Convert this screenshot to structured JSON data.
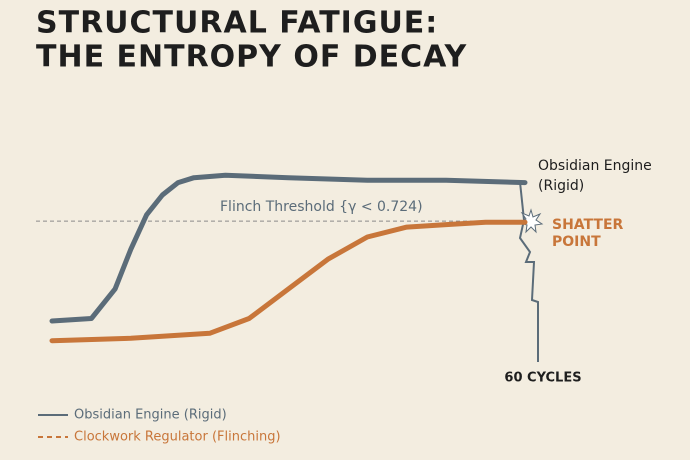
{
  "chart_data": {
    "type": "line",
    "title": [
      "STRUCTURAL FATIGUE:",
      "THE ENTROPY OF DECAY"
    ],
    "xlim": [
      0,
      60
    ],
    "ylim": [
      0,
      1
    ],
    "threshold": {
      "value": 0.724,
      "label": "Flinch Threshold {γ < 0.724)"
    },
    "end_label": [
      "Obsidian Engine",
      "(Rigid)"
    ],
    "shatter_label": [
      "SHATTER",
      "POINT"
    ],
    "cycles_label": "60 CYCLES",
    "series": [
      {
        "name": "Obsidian Engine (Rigid)",
        "color": "#5b6c79",
        "legend_style": "solid",
        "x": [
          0,
          5,
          8,
          10,
          12,
          14,
          16,
          18,
          22,
          30,
          40,
          50,
          60
        ],
        "values": [
          0.32,
          0.33,
          0.45,
          0.61,
          0.75,
          0.83,
          0.88,
          0.9,
          0.91,
          0.9,
          0.89,
          0.89,
          0.88
        ]
      },
      {
        "name": "Clockwork Regulator (Flinching)",
        "color": "#c8763a",
        "legend_style": "dashed",
        "x": [
          0,
          10,
          20,
          25,
          30,
          35,
          40,
          45,
          50,
          55,
          60
        ],
        "values": [
          0.24,
          0.25,
          0.27,
          0.33,
          0.45,
          0.57,
          0.66,
          0.7,
          0.71,
          0.72,
          0.72
        ]
      }
    ]
  }
}
